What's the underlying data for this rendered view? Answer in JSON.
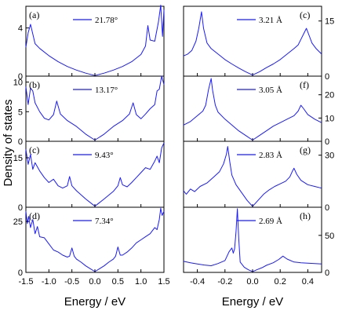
{
  "colors": {
    "curve": "#1a1aff",
    "axis": "#000000"
  },
  "chart_data": {
    "type": "line",
    "ylabel": "Density of states",
    "layout": "4x2 stacked panels; left column shared x-axis, right column shared x-axis",
    "left_column": {
      "xlabel": "Energy / eV",
      "xlim": [
        -1.5,
        1.5
      ],
      "xticks": [
        "-1.5",
        "-1.0",
        "-0.5",
        "0.0",
        "0.5",
        "1.0",
        "1.5"
      ],
      "y_axis_side": "left",
      "panels": [
        {
          "label": "(a)",
          "legend": "21.78°",
          "ylim": [
            0,
            5.8
          ],
          "yticks": [
            "0",
            "4"
          ],
          "points": [
            [
              -1.5,
              2.4
            ],
            [
              -1.45,
              3.6
            ],
            [
              -1.4,
              4.3
            ],
            [
              -1.35,
              3.5
            ],
            [
              -1.3,
              2.7
            ],
            [
              -1.2,
              2.3
            ],
            [
              -1.0,
              1.7
            ],
            [
              -0.8,
              1.2
            ],
            [
              -0.6,
              0.8
            ],
            [
              -0.4,
              0.5
            ],
            [
              -0.2,
              0.25
            ],
            [
              0.0,
              0.05
            ],
            [
              0.2,
              0.25
            ],
            [
              0.4,
              0.5
            ],
            [
              0.6,
              0.8
            ],
            [
              0.8,
              1.2
            ],
            [
              1.0,
              1.8
            ],
            [
              1.1,
              2.5
            ],
            [
              1.15,
              4.2
            ],
            [
              1.2,
              3.0
            ],
            [
              1.3,
              2.9
            ],
            [
              1.38,
              4.5
            ],
            [
              1.43,
              5.9
            ],
            [
              1.47,
              3.3
            ],
            [
              1.5,
              5.5
            ]
          ]
        },
        {
          "label": "(b)",
          "legend": "13.17°",
          "ylim": [
            0,
            11
          ],
          "yticks": [
            "0",
            "5",
            "10"
          ],
          "points": [
            [
              -1.5,
              9.2
            ],
            [
              -1.45,
              6.2
            ],
            [
              -1.4,
              9.0
            ],
            [
              -1.35,
              8.5
            ],
            [
              -1.3,
              6.5
            ],
            [
              -1.2,
              5.0
            ],
            [
              -1.1,
              3.9
            ],
            [
              -1.0,
              3.6
            ],
            [
              -0.9,
              4.5
            ],
            [
              -0.83,
              6.8
            ],
            [
              -0.75,
              4.6
            ],
            [
              -0.6,
              3.5
            ],
            [
              -0.4,
              2.5
            ],
            [
              -0.2,
              1.2
            ],
            [
              0.0,
              0.2
            ],
            [
              0.2,
              1.2
            ],
            [
              0.4,
              2.5
            ],
            [
              0.6,
              3.5
            ],
            [
              0.75,
              4.6
            ],
            [
              0.83,
              6.5
            ],
            [
              0.9,
              4.5
            ],
            [
              1.0,
              3.8
            ],
            [
              1.1,
              4.6
            ],
            [
              1.2,
              5.5
            ],
            [
              1.3,
              6.2
            ],
            [
              1.35,
              8.5
            ],
            [
              1.4,
              8.8
            ],
            [
              1.45,
              11.0
            ],
            [
              1.5,
              9.6
            ]
          ]
        },
        {
          "label": "(c)",
          "legend": "9.43°",
          "ylim": [
            0,
            20
          ],
          "yticks": [
            "0",
            "15"
          ],
          "points": [
            [
              -1.5,
              17.5
            ],
            [
              -1.45,
              13.0
            ],
            [
              -1.4,
              16.0
            ],
            [
              -1.35,
              11.5
            ],
            [
              -1.3,
              13.5
            ],
            [
              -1.2,
              11.0
            ],
            [
              -1.1,
              9.0
            ],
            [
              -1.0,
              7.5
            ],
            [
              -0.9,
              8.5
            ],
            [
              -0.8,
              6.5
            ],
            [
              -0.7,
              5.8
            ],
            [
              -0.6,
              6.5
            ],
            [
              -0.55,
              9.3
            ],
            [
              -0.5,
              6.5
            ],
            [
              -0.4,
              5.0
            ],
            [
              -0.2,
              2.5
            ],
            [
              0.0,
              0.3
            ],
            [
              0.2,
              2.5
            ],
            [
              0.4,
              4.8
            ],
            [
              0.5,
              6.5
            ],
            [
              0.55,
              9.0
            ],
            [
              0.6,
              6.8
            ],
            [
              0.7,
              6.2
            ],
            [
              0.8,
              7.5
            ],
            [
              0.9,
              9.0
            ],
            [
              1.0,
              10.5
            ],
            [
              1.1,
              12.0
            ],
            [
              1.2,
              11.5
            ],
            [
              1.3,
              14.0
            ],
            [
              1.35,
              15.5
            ],
            [
              1.4,
              13.5
            ],
            [
              1.45,
              18.0
            ],
            [
              1.5,
              19.5
            ]
          ]
        },
        {
          "label": "(d)",
          "legend": "7.34°",
          "ylim": [
            0,
            32
          ],
          "yticks": [
            "0",
            "25"
          ],
          "points": [
            [
              -1.5,
              30.0
            ],
            [
              -1.47,
              24.0
            ],
            [
              -1.44,
              27.5
            ],
            [
              -1.4,
              22.0
            ],
            [
              -1.35,
              26.0
            ],
            [
              -1.3,
              19.0
            ],
            [
              -1.25,
              22.5
            ],
            [
              -1.2,
              17.5
            ],
            [
              -1.1,
              17.0
            ],
            [
              -1.0,
              14.0
            ],
            [
              -0.9,
              11.0
            ],
            [
              -0.8,
              10.0
            ],
            [
              -0.7,
              8.5
            ],
            [
              -0.6,
              7.5
            ],
            [
              -0.55,
              8.0
            ],
            [
              -0.5,
              12.0
            ],
            [
              -0.45,
              8.0
            ],
            [
              -0.4,
              6.5
            ],
            [
              -0.3,
              5.0
            ],
            [
              -0.2,
              3.2
            ],
            [
              -0.1,
              1.8
            ],
            [
              0.0,
              0.4
            ],
            [
              0.1,
              1.8
            ],
            [
              0.2,
              3.2
            ],
            [
              0.3,
              5.0
            ],
            [
              0.4,
              6.5
            ],
            [
              0.45,
              8.0
            ],
            [
              0.5,
              12.5
            ],
            [
              0.55,
              8.5
            ],
            [
              0.6,
              8.5
            ],
            [
              0.7,
              10.0
            ],
            [
              0.8,
              12.0
            ],
            [
              0.9,
              14.5
            ],
            [
              1.0,
              16.0
            ],
            [
              1.1,
              17.5
            ],
            [
              1.2,
              19.0
            ],
            [
              1.25,
              20.5
            ],
            [
              1.3,
              22.0
            ],
            [
              1.35,
              21.0
            ],
            [
              1.4,
              26.0
            ],
            [
              1.43,
              31.5
            ],
            [
              1.46,
              28.0
            ],
            [
              1.5,
              30.0
            ]
          ]
        }
      ]
    },
    "right_column": {
      "xlabel": "Energy / eV",
      "xlim": [
        -0.5,
        0.5
      ],
      "xticks": [
        "-0.4",
        "-0.2",
        "0.0",
        "0.2",
        "0.4"
      ],
      "y_axis_side": "right",
      "panels": [
        {
          "label": "(c)",
          "legend": "3.21 Å",
          "ylim": [
            0,
            19
          ],
          "yticks": [
            "0",
            "15"
          ],
          "points": [
            [
              -0.5,
              5.5
            ],
            [
              -0.47,
              6.0
            ],
            [
              -0.44,
              7.0
            ],
            [
              -0.41,
              9.5
            ],
            [
              -0.39,
              13.0
            ],
            [
              -0.37,
              17.5
            ],
            [
              -0.355,
              13.0
            ],
            [
              -0.33,
              9.0
            ],
            [
              -0.3,
              7.5
            ],
            [
              -0.25,
              6.0
            ],
            [
              -0.2,
              4.5
            ],
            [
              -0.15,
              3.3
            ],
            [
              -0.1,
              2.2
            ],
            [
              -0.05,
              1.2
            ],
            [
              0.0,
              0.3
            ],
            [
              0.05,
              1.2
            ],
            [
              0.1,
              2.3
            ],
            [
              0.15,
              3.3
            ],
            [
              0.2,
              4.5
            ],
            [
              0.25,
              6.0
            ],
            [
              0.3,
              7.5
            ],
            [
              0.33,
              8.5
            ],
            [
              0.35,
              10.0
            ],
            [
              0.37,
              11.5
            ],
            [
              0.39,
              13.0
            ],
            [
              0.41,
              11.0
            ],
            [
              0.43,
              9.0
            ],
            [
              0.46,
              7.5
            ],
            [
              0.5,
              6.0
            ]
          ]
        },
        {
          "label": "(f)",
          "legend": "3.05 Å",
          "ylim": [
            0,
            28
          ],
          "yticks": [
            "0",
            "10",
            "20"
          ],
          "points": [
            [
              -0.5,
              7.0
            ],
            [
              -0.45,
              8.5
            ],
            [
              -0.4,
              11.0
            ],
            [
              -0.36,
              13.0
            ],
            [
              -0.34,
              15.5
            ],
            [
              -0.32,
              22.0
            ],
            [
              -0.3,
              27.0
            ],
            [
              -0.29,
              22.0
            ],
            [
              -0.27,
              15.5
            ],
            [
              -0.25,
              12.5
            ],
            [
              -0.2,
              9.5
            ],
            [
              -0.15,
              7.0
            ],
            [
              -0.1,
              4.5
            ],
            [
              -0.05,
              2.5
            ],
            [
              0.0,
              0.5
            ],
            [
              0.05,
              2.5
            ],
            [
              0.1,
              4.5
            ],
            [
              0.15,
              6.5
            ],
            [
              0.2,
              8.0
            ],
            [
              0.25,
              9.5
            ],
            [
              0.3,
              11.0
            ],
            [
              0.33,
              13.0
            ],
            [
              0.35,
              15.5
            ],
            [
              0.37,
              14.0
            ],
            [
              0.4,
              11.5
            ],
            [
              0.45,
              9.5
            ],
            [
              0.5,
              8.0
            ]
          ]
        },
        {
          "label": "(g)",
          "legend": "2.83 Å",
          "ylim": [
            0,
            38
          ],
          "yticks": [
            "0",
            "30"
          ],
          "points": [
            [
              -0.5,
              9.5
            ],
            [
              -0.48,
              7.5
            ],
            [
              -0.45,
              10.5
            ],
            [
              -0.42,
              9.0
            ],
            [
              -0.38,
              12.0
            ],
            [
              -0.33,
              14.0
            ],
            [
              -0.28,
              17.5
            ],
            [
              -0.24,
              20.5
            ],
            [
              -0.21,
              25.0
            ],
            [
              -0.19,
              30.5
            ],
            [
              -0.18,
              35.0
            ],
            [
              -0.165,
              26.0
            ],
            [
              -0.15,
              18.5
            ],
            [
              -0.12,
              13.0
            ],
            [
              -0.08,
              8.5
            ],
            [
              -0.04,
              4.0
            ],
            [
              0.0,
              0.5
            ],
            [
              0.04,
              4.0
            ],
            [
              0.08,
              7.5
            ],
            [
              0.12,
              10.0
            ],
            [
              0.16,
              12.0
            ],
            [
              0.2,
              13.5
            ],
            [
              0.24,
              15.0
            ],
            [
              0.27,
              17.5
            ],
            [
              0.29,
              21.0
            ],
            [
              0.3,
              22.5
            ],
            [
              0.32,
              19.0
            ],
            [
              0.35,
              15.5
            ],
            [
              0.4,
              13.0
            ],
            [
              0.45,
              12.0
            ],
            [
              0.5,
              11.0
            ]
          ]
        },
        {
          "label": "(h)",
          "legend": "2.69 Å",
          "ylim": [
            0,
            88
          ],
          "yticks": [
            "0",
            "50"
          ],
          "points": [
            [
              -0.5,
              15.0
            ],
            [
              -0.45,
              13.0
            ],
            [
              -0.4,
              11.5
            ],
            [
              -0.35,
              10.0
            ],
            [
              -0.3,
              9.0
            ],
            [
              -0.25,
              12.0
            ],
            [
              -0.2,
              16.0
            ],
            [
              -0.17,
              28.0
            ],
            [
              -0.15,
              33.0
            ],
            [
              -0.14,
              26.0
            ],
            [
              -0.13,
              32.0
            ],
            [
              -0.12,
              55.0
            ],
            [
              -0.11,
              86.0
            ],
            [
              -0.1,
              45.0
            ],
            [
              -0.09,
              14.0
            ],
            [
              -0.06,
              7.0
            ],
            [
              -0.03,
              3.5
            ],
            [
              0.0,
              1.0
            ],
            [
              0.03,
              3.5
            ],
            [
              0.07,
              6.5
            ],
            [
              0.1,
              9.5
            ],
            [
              0.15,
              13.0
            ],
            [
              0.19,
              17.5
            ],
            [
              0.22,
              22.0
            ],
            [
              0.25,
              18.0
            ],
            [
              0.3,
              14.0
            ],
            [
              0.35,
              13.0
            ],
            [
              0.4,
              12.5
            ],
            [
              0.45,
              12.0
            ],
            [
              0.5,
              11.5
            ]
          ]
        }
      ]
    }
  }
}
